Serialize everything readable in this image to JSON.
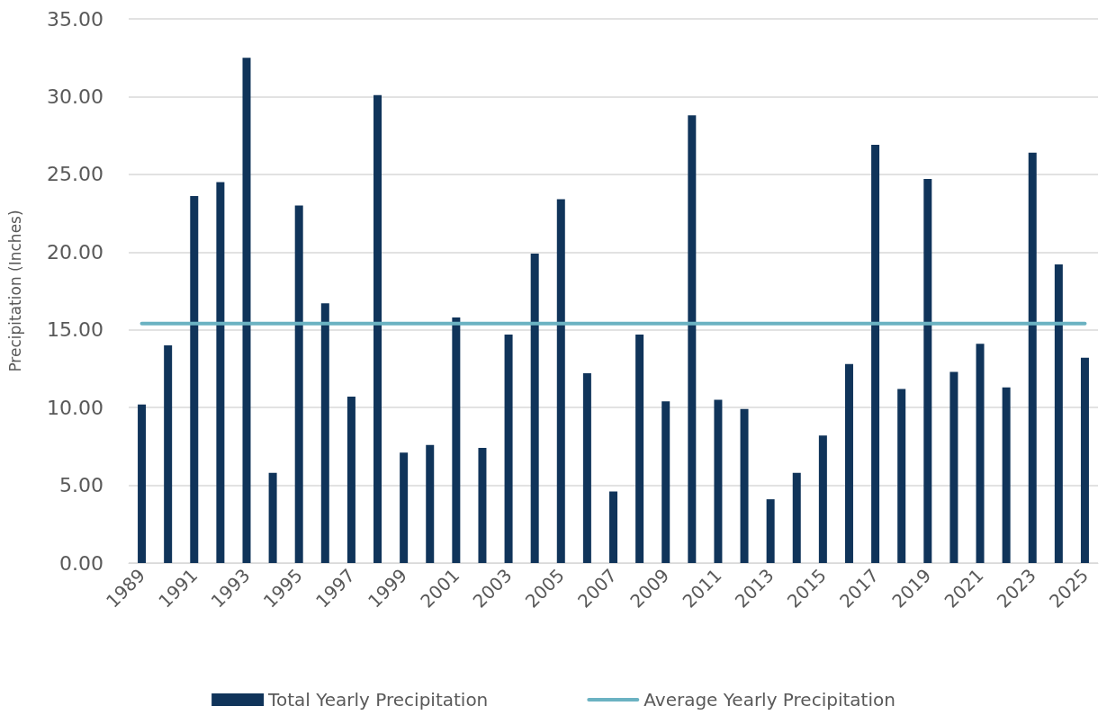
{
  "chart_data": {
    "type": "bar",
    "ylabel": "Precipitation (Inches)",
    "categories": [
      "1989",
      null,
      "1991",
      null,
      "1993",
      null,
      "1995",
      null,
      "1997",
      null,
      "1999",
      null,
      "2001",
      null,
      "2003",
      null,
      "2005",
      null,
      "2007",
      null,
      "2009",
      null,
      "2011",
      null,
      "2013",
      null,
      "2015",
      null,
      "2017",
      null,
      "2019",
      null,
      "2021",
      null,
      "2023",
      null,
      "2025"
    ],
    "series": [
      {
        "name": "Total Yearly Precipitation",
        "color": "#10345a",
        "values": [
          10.2,
          14.0,
          23.6,
          24.5,
          32.5,
          5.8,
          23.0,
          16.7,
          10.7,
          30.1,
          7.1,
          7.6,
          15.8,
          7.4,
          14.7,
          19.9,
          23.4,
          12.2,
          4.6,
          14.7,
          10.4,
          28.8,
          10.5,
          9.9,
          4.1,
          5.8,
          8.2,
          12.8,
          26.9,
          11.2,
          24.7,
          12.3,
          14.1,
          11.3,
          26.4,
          19.2,
          13.2
        ]
      },
      {
        "name": "Average Yearly Precipitation",
        "type": "line",
        "color": "#6bb2c2",
        "marker": "none",
        "values": [
          15.4,
          15.4,
          15.4,
          15.4,
          15.4,
          15.4,
          15.4,
          15.4,
          15.4,
          15.4,
          15.4,
          15.4,
          15.4,
          15.4,
          15.4,
          15.4,
          15.4,
          15.4,
          15.4,
          15.4,
          15.4,
          15.4,
          15.4,
          15.4,
          15.4,
          15.4,
          15.4,
          15.4,
          15.4,
          15.4,
          15.4,
          15.4,
          15.4,
          15.4,
          15.4,
          15.4,
          15.4
        ]
      }
    ],
    "ylim": [
      0,
      35
    ],
    "yticks": [
      {
        "value": 0,
        "label": "0.00"
      },
      {
        "value": 5,
        "label": "5.00"
      },
      {
        "value": 10,
        "label": "10.00"
      },
      {
        "value": 15,
        "label": "15.00"
      },
      {
        "value": 20,
        "label": "20.00"
      },
      {
        "value": 25,
        "label": "25.00"
      },
      {
        "value": 30,
        "label": "30.00"
      },
      {
        "value": 35,
        "label": "35.00"
      }
    ],
    "grid": "y",
    "legend": "bottom"
  }
}
